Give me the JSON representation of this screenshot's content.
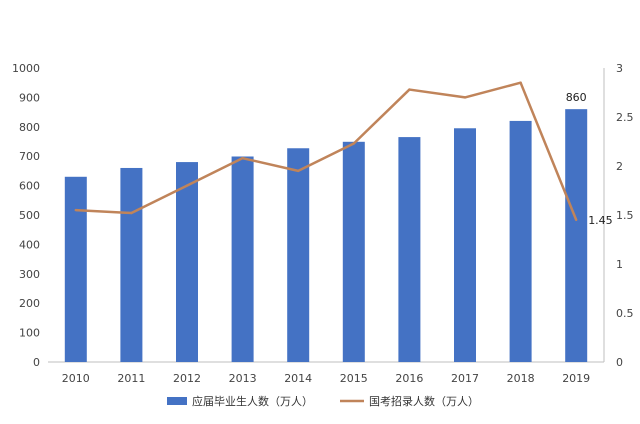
{
  "chart_data": {
    "type": "bar+line",
    "title": "",
    "categories": [
      "2010",
      "2011",
      "2012",
      "2013",
      "2014",
      "2015",
      "2016",
      "2017",
      "2018",
      "2019"
    ],
    "series": [
      {
        "name": "应届毕业生人数（万人）",
        "type": "bar",
        "axis": "left",
        "color": "#4472C4",
        "values": [
          630,
          660,
          680,
          699,
          727,
          749,
          765,
          795,
          820,
          860
        ]
      },
      {
        "name": "国考招录人数（万人）",
        "type": "line",
        "axis": "right",
        "color": "#C0845A",
        "values": [
          1.55,
          1.52,
          1.8,
          2.08,
          1.95,
          2.23,
          2.78,
          2.7,
          2.85,
          1.45
        ]
      }
    ],
    "y_left": {
      "min": 0,
      "max": 1000,
      "ticks": [
        "0",
        "100",
        "200",
        "300",
        "400",
        "500",
        "600",
        "700",
        "800",
        "900",
        "1000"
      ]
    },
    "y_right": {
      "min": 0,
      "max": 3,
      "ticks": [
        "0",
        "0.5",
        "1",
        "1.5",
        "2",
        "2.5",
        "3"
      ]
    },
    "data_labels": [
      {
        "series": 0,
        "index": 9,
        "text": "860"
      },
      {
        "series": 1,
        "index": 9,
        "text": "1.45"
      }
    ],
    "grid": false,
    "legend_position": "bottom"
  }
}
